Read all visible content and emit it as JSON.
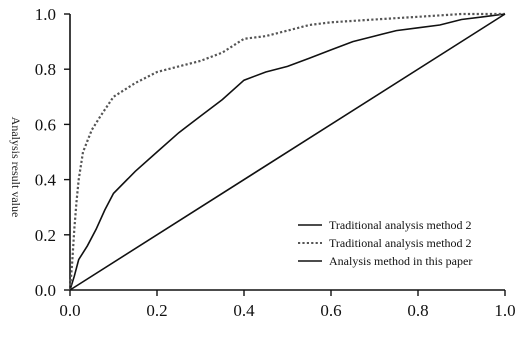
{
  "chart_data": {
    "type": "line",
    "title": "",
    "xlabel": "",
    "ylabel": "Analysis result value",
    "xlim": [
      0,
      1
    ],
    "ylim": [
      0,
      1
    ],
    "x_ticks": [
      "0.0",
      "0.2",
      "0.4",
      "0.6",
      "0.8",
      "1.0"
    ],
    "y_ticks": [
      "0.0",
      "0.2",
      "0.4",
      "0.6",
      "0.8",
      "1.0"
    ],
    "grid": false,
    "legend_position": "bottom-right",
    "series": [
      {
        "name": "Traditional analysis method 2",
        "style": "solid",
        "color": "#111111",
        "x": [
          0,
          0.01,
          0.02,
          0.04,
          0.06,
          0.08,
          0.1,
          0.15,
          0.2,
          0.25,
          0.3,
          0.35,
          0.4,
          0.45,
          0.5,
          0.55,
          0.6,
          0.65,
          0.7,
          0.75,
          0.8,
          0.85,
          0.9,
          0.95,
          1.0
        ],
        "y": [
          0,
          0.05,
          0.11,
          0.16,
          0.22,
          0.29,
          0.35,
          0.43,
          0.5,
          0.57,
          0.63,
          0.69,
          0.76,
          0.79,
          0.81,
          0.84,
          0.87,
          0.9,
          0.92,
          0.94,
          0.95,
          0.96,
          0.98,
          0.99,
          1.0
        ]
      },
      {
        "name": "Traditional analysis method 2",
        "style": "dotted",
        "color": "#555555",
        "x": [
          0,
          0.005,
          0.01,
          0.015,
          0.02,
          0.03,
          0.05,
          0.07,
          0.1,
          0.15,
          0.2,
          0.25,
          0.3,
          0.35,
          0.4,
          0.45,
          0.5,
          0.55,
          0.6,
          0.7,
          0.8,
          0.9,
          1.0
        ],
        "y": [
          0,
          0.1,
          0.22,
          0.32,
          0.4,
          0.5,
          0.58,
          0.63,
          0.7,
          0.75,
          0.79,
          0.81,
          0.83,
          0.86,
          0.91,
          0.92,
          0.94,
          0.96,
          0.97,
          0.98,
          0.99,
          1.0,
          1.0
        ]
      },
      {
        "name": "Analysis method in this paper",
        "style": "solid",
        "color": "#111111",
        "x": [
          0,
          1.0
        ],
        "y": [
          0,
          1.0
        ]
      }
    ]
  }
}
